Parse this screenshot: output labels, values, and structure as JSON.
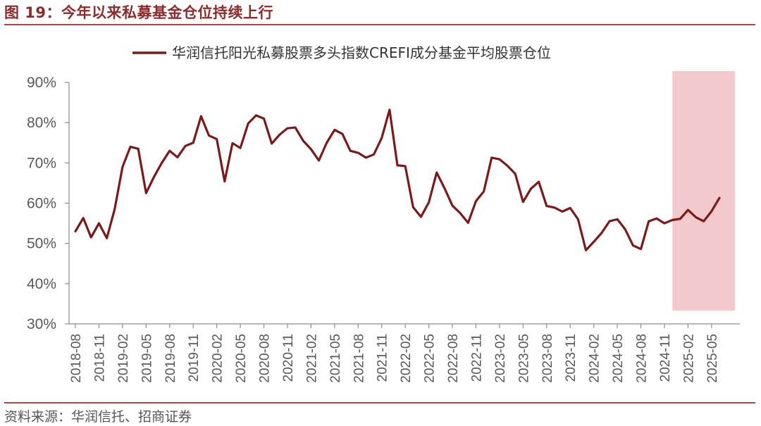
{
  "header": {
    "title": "图 19：今年以来私募基金仓位持续上行"
  },
  "footer": {
    "source": "资料来源：华润信托、招商证券"
  },
  "colors": {
    "series": "#7b1a1a",
    "highlight": "#f2c9cc",
    "accent": "#b24a3b"
  },
  "chart_data": {
    "type": "line",
    "title": "",
    "xlabel": "",
    "ylabel": "",
    "ylim": [
      30,
      90
    ],
    "yticks": [
      "30%",
      "40%",
      "50%",
      "60%",
      "70%",
      "80%",
      "90%"
    ],
    "grid": false,
    "legend_position": "top-center",
    "x_ticks": [
      "2018-08",
      "2018-11",
      "2019-02",
      "2019-05",
      "2019-08",
      "2019-11",
      "2020-02",
      "2020-05",
      "2020-08",
      "2020-11",
      "2021-02",
      "2021-05",
      "2021-08",
      "2021-11",
      "2022-02",
      "2022-05",
      "2022-08",
      "2022-11",
      "2023-02",
      "2023-05",
      "2023-08",
      "2023-11",
      "2024-02",
      "2024-05",
      "2024-08",
      "2024-11",
      "2025-02",
      "2025-05"
    ],
    "highlight_range": [
      "2025-01",
      "2025-07"
    ],
    "series": [
      {
        "name": "华润信托阳光私募股票多头指数CREFI成分基金平均股票仓位",
        "x": [
          "2018-08",
          "2018-09",
          "2018-10",
          "2018-11",
          "2018-12",
          "2019-01",
          "2019-02",
          "2019-03",
          "2019-04",
          "2019-05",
          "2019-06",
          "2019-07",
          "2019-08",
          "2019-09",
          "2019-10",
          "2019-11",
          "2019-12",
          "2020-01",
          "2020-02",
          "2020-03",
          "2020-04",
          "2020-05",
          "2020-06",
          "2020-07",
          "2020-08",
          "2020-09",
          "2020-10",
          "2020-11",
          "2020-12",
          "2021-01",
          "2021-02",
          "2021-03",
          "2021-04",
          "2021-05",
          "2021-06",
          "2021-07",
          "2021-08",
          "2021-09",
          "2021-10",
          "2021-11",
          "2021-12",
          "2022-01",
          "2022-02",
          "2022-03",
          "2022-04",
          "2022-05",
          "2022-06",
          "2022-07",
          "2022-08",
          "2022-09",
          "2022-10",
          "2022-11",
          "2022-12",
          "2023-01",
          "2023-02",
          "2023-03",
          "2023-04",
          "2023-05",
          "2023-06",
          "2023-07",
          "2023-08",
          "2023-09",
          "2023-10",
          "2023-11",
          "2023-12",
          "2024-01",
          "2024-02",
          "2024-03",
          "2024-04",
          "2024-05",
          "2024-06",
          "2024-07",
          "2024-08",
          "2024-09",
          "2024-10",
          "2024-11",
          "2024-12",
          "2025-01",
          "2025-02",
          "2025-03",
          "2025-04",
          "2025-05",
          "2025-06"
        ],
        "values": [
          53,
          56.3,
          51.5,
          55,
          51.3,
          58.5,
          69,
          74,
          73.5,
          62.5,
          66.5,
          70,
          73,
          71.4,
          74.2,
          75,
          81.6,
          76.8,
          75.9,
          65.4,
          74.9,
          73.7,
          79.8,
          81.8,
          81,
          74.8,
          77,
          78.6,
          78.8,
          75.5,
          73.4,
          70.6,
          75,
          78.2,
          77.2,
          73,
          72.5,
          71.3,
          72.1,
          76.2,
          83.2,
          69.4,
          69.2,
          59,
          56.6,
          60.2,
          67.6,
          63.7,
          59.4,
          57.5,
          55.1,
          60.5,
          62.9,
          71.3,
          70.9,
          69.3,
          67.3,
          60.3,
          63.6,
          65.3,
          59.3,
          58.9,
          57.9,
          58.8,
          56,
          48.3,
          50.4,
          52.6,
          55.5,
          56,
          53.5,
          49.5,
          48.6,
          55.5,
          56.2,
          55,
          55.8,
          56.1,
          58.3,
          56.5,
          55.5,
          58,
          61.3
        ]
      }
    ]
  }
}
